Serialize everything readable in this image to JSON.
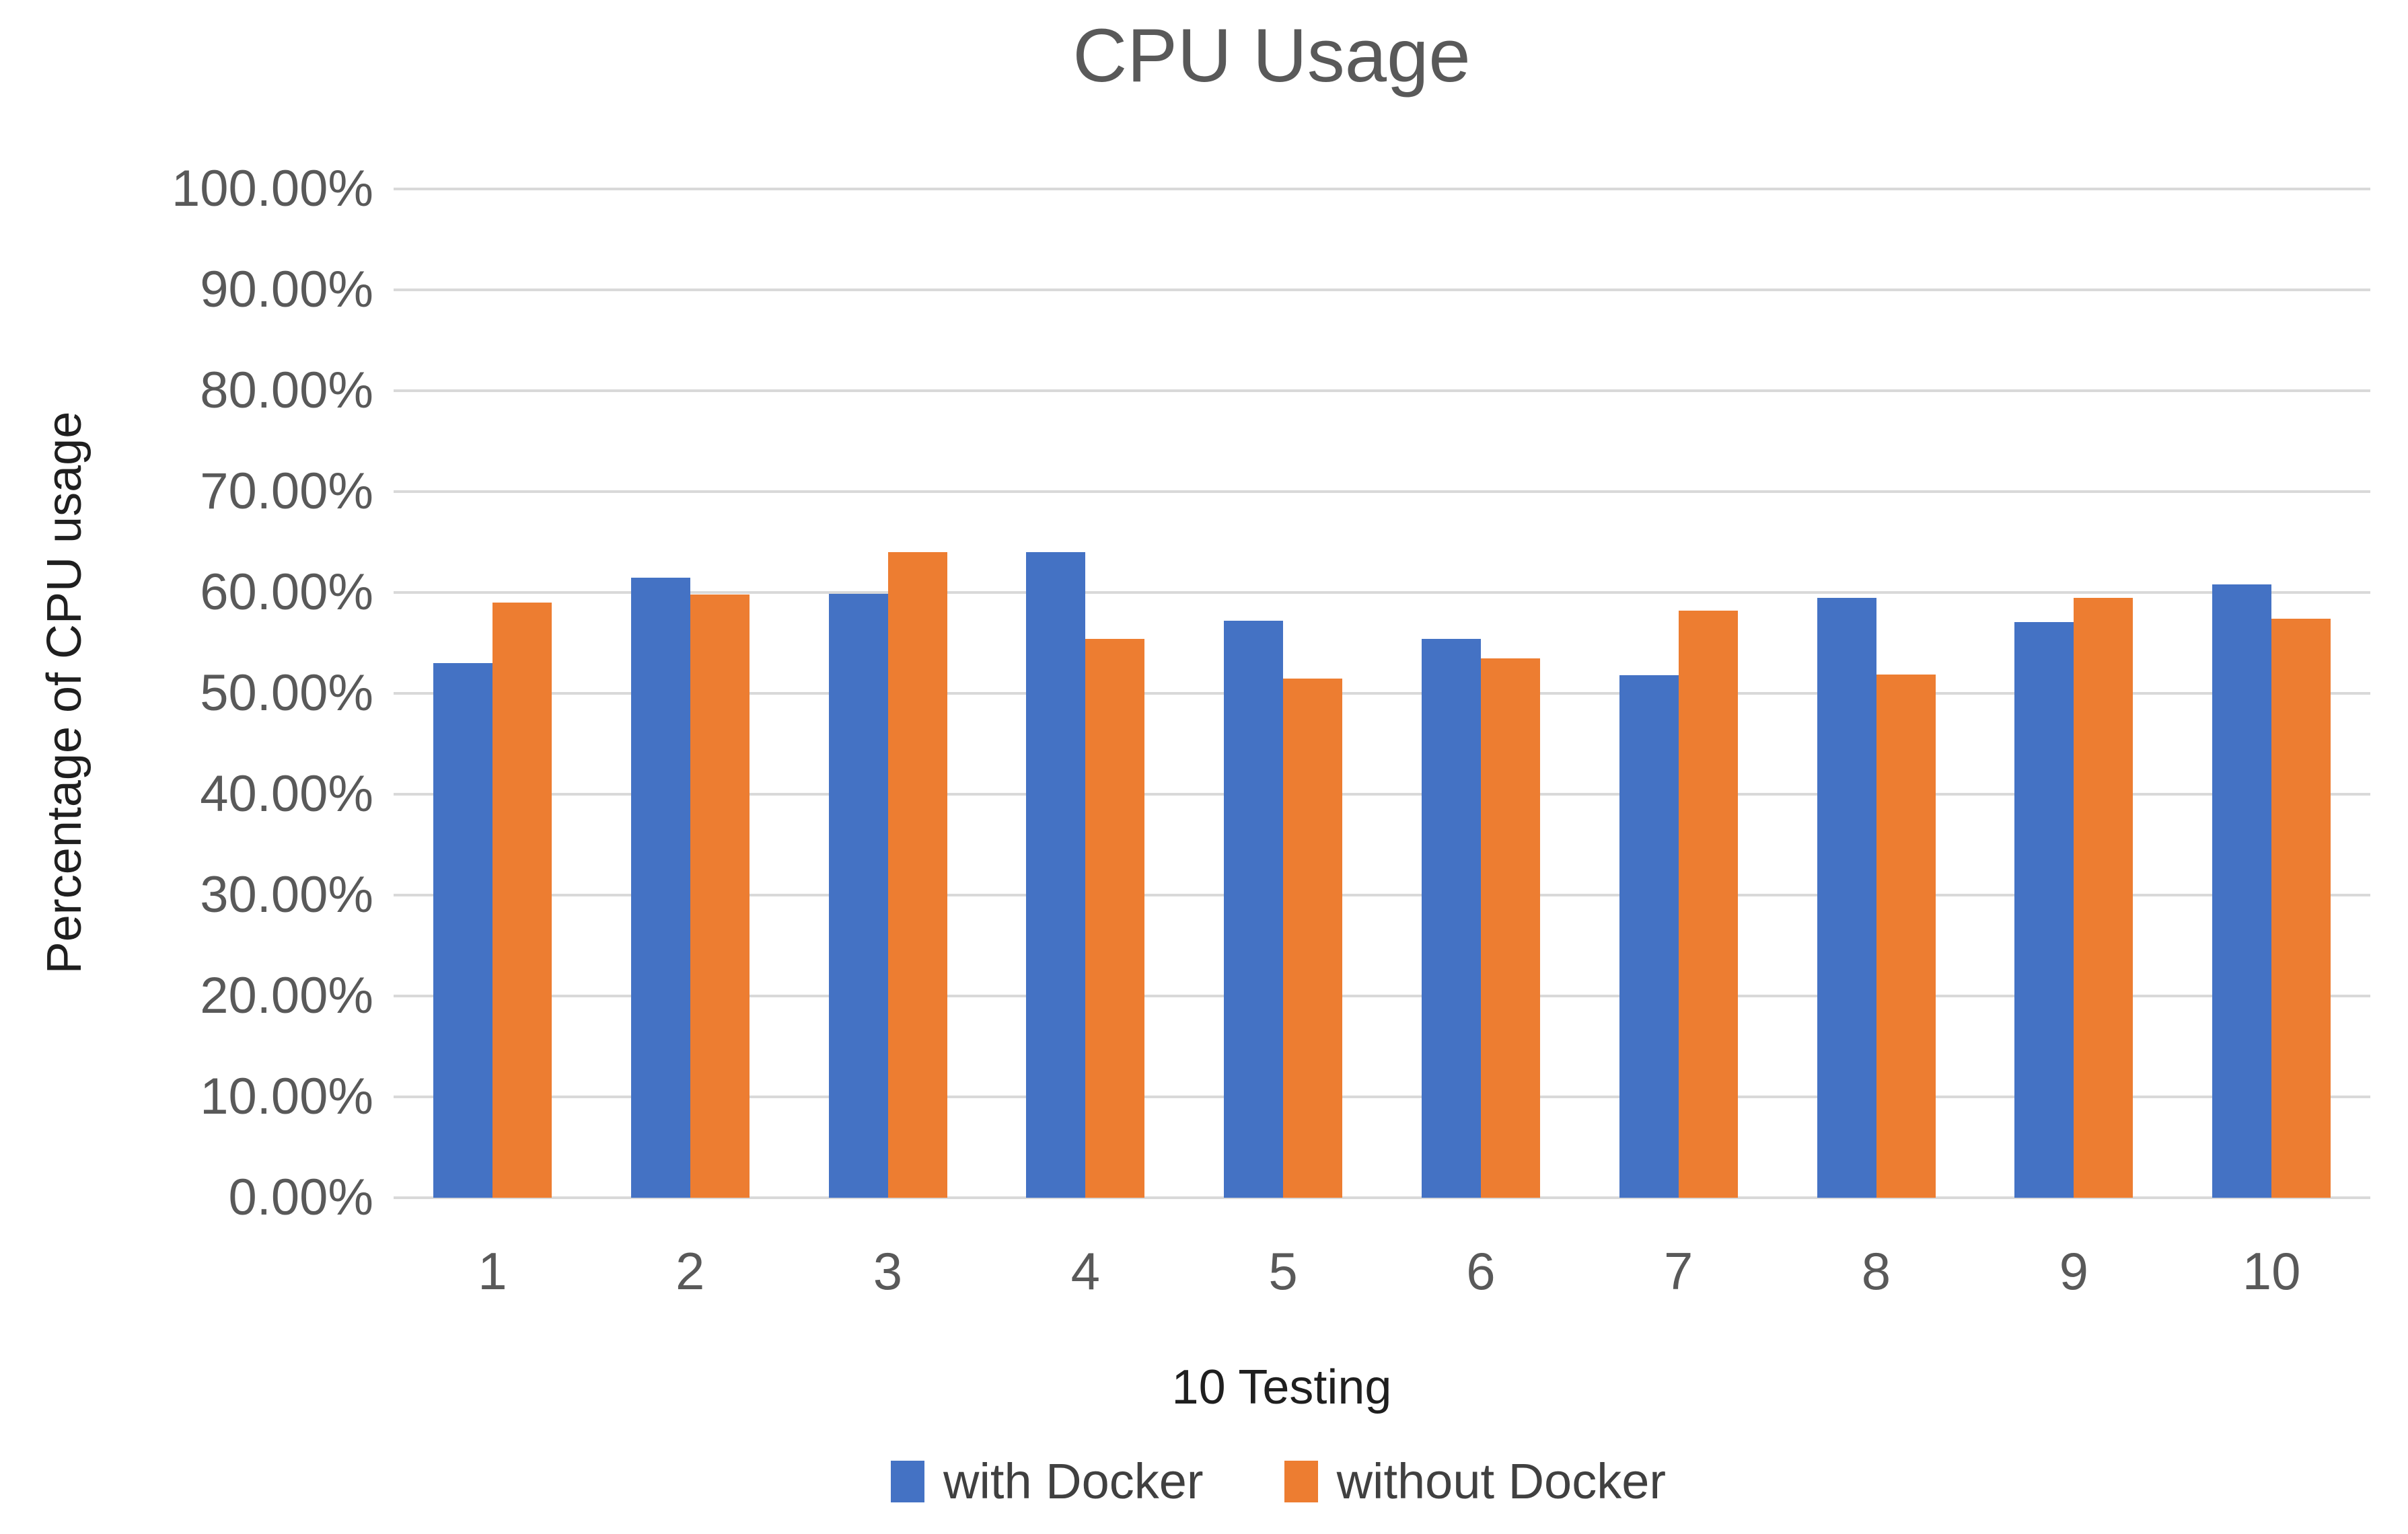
{
  "chart_data": {
    "type": "bar",
    "title": "CPU Usage",
    "xlabel": "10 Testing",
    "ylabel": "Percentage of CPU usage",
    "categories": [
      "1",
      "2",
      "3",
      "4",
      "5",
      "6",
      "7",
      "8",
      "9",
      "10"
    ],
    "series": [
      {
        "name": "with Docker",
        "color": "#4472C4",
        "values": [
          53.0,
          61.5,
          59.9,
          64.0,
          57.2,
          55.4,
          51.8,
          59.5,
          57.1,
          60.8
        ]
      },
      {
        "name": "without Docker",
        "color": "#ED7D31",
        "values": [
          59.0,
          59.8,
          64.0,
          55.4,
          51.5,
          53.5,
          58.2,
          51.9,
          59.5,
          57.4
        ]
      }
    ],
    "ylim": [
      0,
      100
    ],
    "y_tick_step": 10,
    "y_ticks": [
      "100.00%",
      "90.00%",
      "80.00%",
      "70.00%",
      "60.00%",
      "50.00%",
      "40.00%",
      "30.00%",
      "20.00%",
      "10.00%",
      "0.00%"
    ],
    "grid": true,
    "legend_position": "bottom"
  },
  "colors": {
    "gridline": "#d9d9d9",
    "tick_text": "#595959",
    "title_text": "#595959",
    "axis_title_text": "#1f1f1f",
    "legend_text": "#404040",
    "background": "#ffffff"
  }
}
